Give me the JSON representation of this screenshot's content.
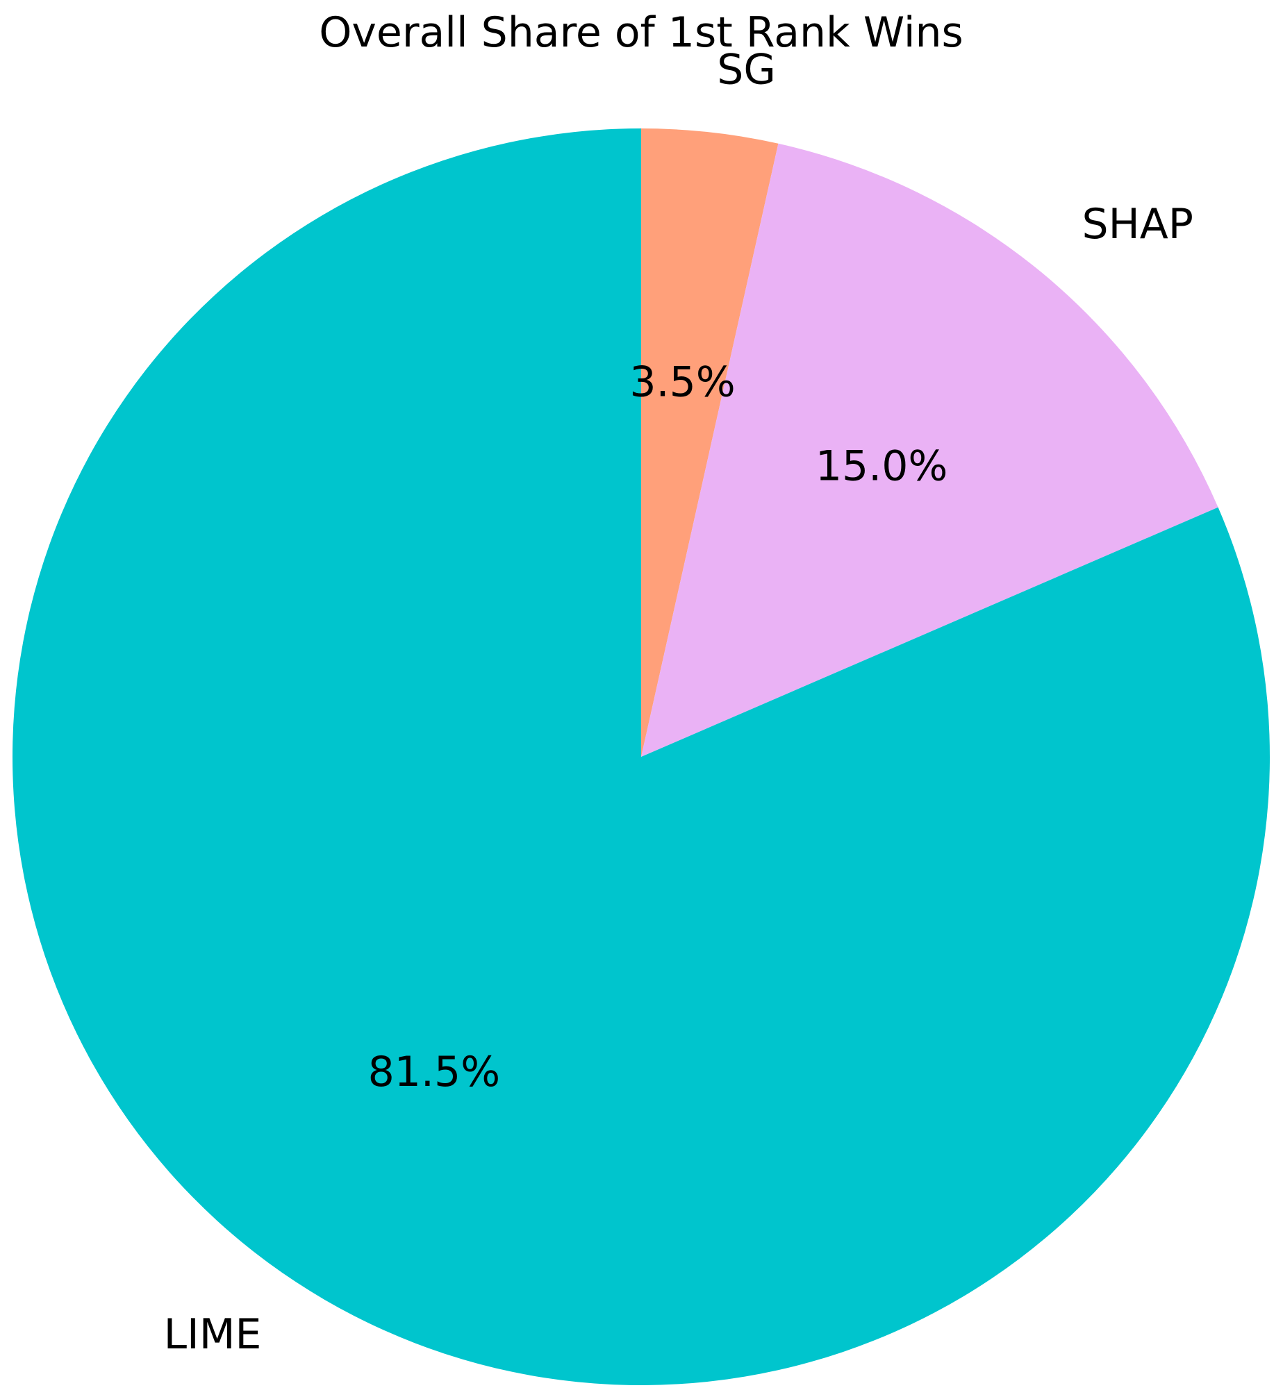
{
  "chart_data": {
    "type": "pie",
    "title": "Overall Share of 1st Rank Wins",
    "start_angle_deg": 90,
    "direction": "clockwise",
    "slices": [
      {
        "label": "SG",
        "value": 3.5,
        "pct_label": "3.5%",
        "color": "#FFA07A"
      },
      {
        "label": "SHAP",
        "value": 15.0,
        "pct_label": "15.0%",
        "color": "#EAB2F5"
      },
      {
        "label": "LIME",
        "value": 81.5,
        "pct_label": "81.5%",
        "color": "#00C5CD"
      }
    ],
    "legend": "none"
  }
}
